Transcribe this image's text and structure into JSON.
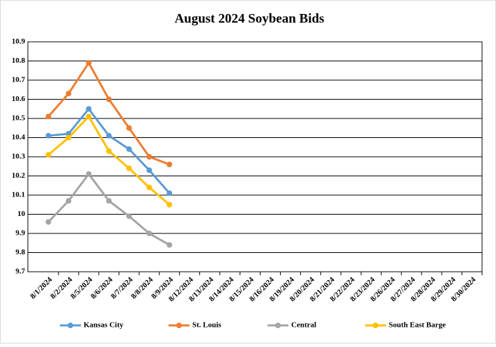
{
  "chart_data": {
    "type": "line",
    "title": "August 2024 Soybean Bids",
    "categories": [
      "8/1/2024",
      "8/2/2024",
      "8/5/2024",
      "8/6/2024",
      "8/7/2024",
      "8/8/2024",
      "8/9/2024",
      "8/12/2024",
      "8/13/2024",
      "8/14/2024",
      "8/15/2024",
      "8/16/2024",
      "8/19/2024",
      "8/20/2024",
      "8/21/2024",
      "8/22/2024",
      "8/23/2024",
      "8/26/2024",
      "8/27/2024",
      "8/28/2024",
      "8/29/2024",
      "8/30/2024"
    ],
    "series": [
      {
        "name": "Kansas City",
        "color": "#5b9bd5",
        "values": [
          10.41,
          10.42,
          10.55,
          10.41,
          10.34,
          10.23,
          10.11,
          null,
          null,
          null,
          null,
          null,
          null,
          null,
          null,
          null,
          null,
          null,
          null,
          null,
          null,
          null
        ]
      },
      {
        "name": "St. Louis",
        "color": "#ed7d31",
        "values": [
          10.51,
          10.63,
          10.79,
          10.6,
          10.45,
          10.3,
          10.26,
          null,
          null,
          null,
          null,
          null,
          null,
          null,
          null,
          null,
          null,
          null,
          null,
          null,
          null,
          null
        ]
      },
      {
        "name": "Central",
        "color": "#a5a5a5",
        "values": [
          9.96,
          10.07,
          10.21,
          10.07,
          9.99,
          9.9,
          9.84,
          null,
          null,
          null,
          null,
          null,
          null,
          null,
          null,
          null,
          null,
          null,
          null,
          null,
          null,
          null
        ]
      },
      {
        "name": "South East Barge",
        "color": "#ffc000",
        "values": [
          10.31,
          10.4,
          10.51,
          10.33,
          10.24,
          10.14,
          10.05,
          null,
          null,
          null,
          null,
          null,
          null,
          null,
          null,
          null,
          null,
          null,
          null,
          null,
          null,
          null
        ]
      }
    ],
    "ylim": [
      9.7,
      10.9
    ],
    "yticks": [
      9.7,
      9.8,
      9.9,
      10,
      10.1,
      10.2,
      10.3,
      10.4,
      10.5,
      10.6,
      10.7,
      10.8,
      10.9
    ],
    "grid": true,
    "legend": "bottom"
  }
}
